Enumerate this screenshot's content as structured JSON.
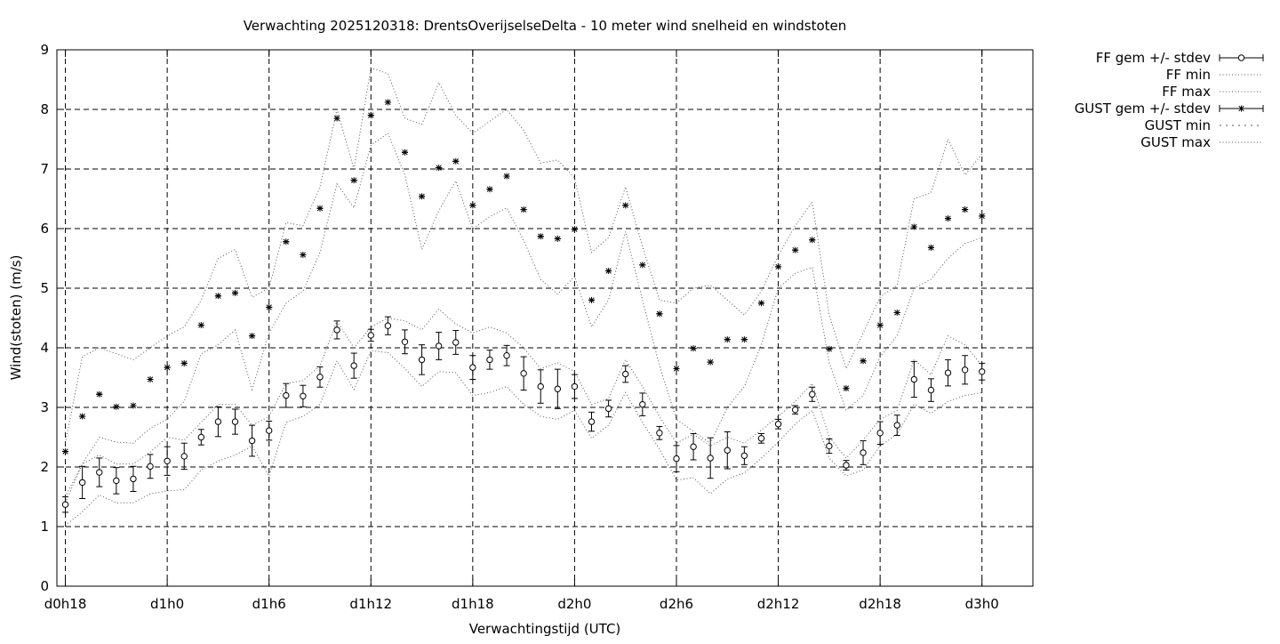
{
  "chart_data": {
    "type": "line",
    "title": "Verwachting 2025120318: DrentsOverijselseDelta - 10 meter wind snelheid en windstoten",
    "xlabel": "Verwachtingstijd (UTC)",
    "ylabel": "Wind(stoten) (m/s)",
    "xlim": [
      -0.5,
      57
    ],
    "ylim": [
      0,
      9
    ],
    "yticks": [
      0,
      1,
      2,
      3,
      4,
      5,
      6,
      7,
      8,
      9
    ],
    "xticks": [
      {
        "x": 0,
        "label": "d0h18"
      },
      {
        "x": 6,
        "label": "d1h0"
      },
      {
        "x": 12,
        "label": "d1h6"
      },
      {
        "x": 18,
        "label": "d1h12"
      },
      {
        "x": 24,
        "label": "d1h18"
      },
      {
        "x": 30,
        "label": "d2h0"
      },
      {
        "x": 36,
        "label": "d2h6"
      },
      {
        "x": 42,
        "label": "d2h12"
      },
      {
        "x": 48,
        "label": "d2h18"
      },
      {
        "x": 54,
        "label": "d3h0"
      }
    ],
    "grid": true,
    "legend_position": "outside-top-right",
    "x": [
      0,
      1,
      2,
      3,
      4,
      5,
      6,
      7,
      8,
      9,
      10,
      11,
      12,
      13,
      14,
      15,
      16,
      17,
      18,
      19,
      20,
      21,
      22,
      23,
      24,
      25,
      26,
      27,
      28,
      29,
      30,
      31,
      32,
      33,
      34,
      35,
      36,
      37,
      38,
      39,
      40,
      41,
      42,
      43,
      44,
      45,
      46,
      47,
      48,
      49,
      50,
      51,
      52,
      53,
      54
    ],
    "series": [
      {
        "name": "FF gem +/- stdev",
        "style": "errorbar-circle",
        "values": [
          1.37,
          1.74,
          1.91,
          1.77,
          1.8,
          2.01,
          2.1,
          2.18,
          2.5,
          2.76,
          2.76,
          2.44,
          2.61,
          3.2,
          3.19,
          3.51,
          4.3,
          3.7,
          4.21,
          4.37,
          4.1,
          3.8,
          4.03,
          4.09,
          3.67,
          3.8,
          3.87,
          3.57,
          3.35,
          3.31,
          3.35,
          2.76,
          2.98,
          3.56,
          3.05,
          2.57,
          2.14,
          2.34,
          2.15,
          2.28,
          2.19,
          2.48,
          2.72,
          2.96,
          3.22,
          2.35,
          2.03,
          2.24,
          2.57,
          2.7,
          3.47,
          3.29,
          3.58,
          3.63,
          3.6
        ],
        "stdev": [
          0.13,
          0.27,
          0.24,
          0.22,
          0.21,
          0.2,
          0.24,
          0.22,
          0.13,
          0.25,
          0.21,
          0.26,
          0.16,
          0.2,
          0.18,
          0.17,
          0.15,
          0.21,
          0.1,
          0.15,
          0.2,
          0.25,
          0.23,
          0.2,
          0.2,
          0.16,
          0.17,
          0.28,
          0.28,
          0.33,
          0.2,
          0.16,
          0.14,
          0.14,
          0.19,
          0.11,
          0.22,
          0.22,
          0.34,
          0.31,
          0.15,
          0.08,
          0.08,
          0.07,
          0.12,
          0.12,
          0.08,
          0.2,
          0.19,
          0.17,
          0.3,
          0.19,
          0.22,
          0.24,
          0.14
        ]
      },
      {
        "name": "FF min",
        "style": "dotted",
        "values": [
          1.02,
          1.25,
          1.53,
          1.4,
          1.4,
          1.55,
          1.6,
          1.62,
          1.95,
          2.1,
          2.2,
          2.35,
          1.85,
          2.75,
          2.85,
          3.05,
          3.78,
          3.3,
          3.95,
          3.92,
          3.65,
          3.35,
          3.6,
          3.58,
          3.2,
          3.25,
          3.35,
          3.05,
          2.85,
          2.8,
          2.95,
          2.48,
          2.7,
          3.25,
          2.75,
          2.3,
          1.78,
          1.82,
          1.55,
          1.8,
          1.9,
          2.15,
          2.42,
          2.72,
          2.95,
          2.15,
          1.85,
          1.95,
          2.35,
          2.55,
          3.05,
          2.9,
          3.1,
          3.2,
          3.25
        ]
      },
      {
        "name": "FF max",
        "style": "dotted",
        "values": [
          1.4,
          2.05,
          2.2,
          2.05,
          2.05,
          2.25,
          2.5,
          2.45,
          2.75,
          3.05,
          3.05,
          2.7,
          2.85,
          3.4,
          3.45,
          3.7,
          4.45,
          4.0,
          4.35,
          4.5,
          4.45,
          4.3,
          4.65,
          4.4,
          4.25,
          4.35,
          4.25,
          4.0,
          3.65,
          3.75,
          3.6,
          3.05,
          3.15,
          3.8,
          3.35,
          2.85,
          2.4,
          2.55,
          2.35,
          2.5,
          2.4,
          2.62,
          2.85,
          3.1,
          3.4,
          2.5,
          2.15,
          2.45,
          2.8,
          2.95,
          3.8,
          3.55,
          4.2,
          4.05,
          3.7
        ]
      },
      {
        "name": "GUST gem +/- stdev",
        "style": "errorbar-star",
        "values": [
          2.26,
          2.85,
          3.22,
          3.01,
          3.03,
          3.47,
          3.67,
          3.74,
          4.38,
          4.87,
          4.92,
          4.2,
          4.68,
          5.78,
          5.56,
          6.34,
          7.85,
          6.81,
          7.9,
          8.12,
          7.28,
          6.54,
          7.02,
          7.13,
          6.39,
          6.66,
          6.88,
          6.32,
          5.87,
          5.83,
          5.99,
          4.8,
          5.29,
          6.39,
          5.39,
          4.57,
          3.65,
          3.99,
          3.76,
          4.14,
          4.14,
          4.75,
          5.36,
          5.64,
          5.81,
          3.98,
          3.32,
          3.78,
          4.38,
          4.59,
          6.03,
          5.68,
          6.17,
          6.32,
          6.21
        ]
      },
      {
        "name": "GUST min",
        "style": "dotted",
        "values": [
          1.5,
          2.05,
          2.5,
          2.42,
          2.4,
          2.65,
          2.8,
          3.1,
          3.9,
          4.05,
          4.3,
          3.3,
          4.25,
          4.75,
          4.95,
          5.6,
          6.75,
          6.35,
          7.4,
          7.6,
          6.9,
          5.65,
          6.3,
          6.8,
          6.0,
          6.2,
          6.35,
          5.8,
          5.15,
          4.9,
          5.2,
          4.35,
          4.8,
          5.95,
          4.8,
          3.7,
          2.8,
          2.6,
          2.4,
          3.0,
          3.35,
          4.05,
          5.0,
          5.25,
          5.35,
          3.75,
          2.95,
          3.2,
          3.85,
          4.2,
          5.0,
          5.15,
          5.5,
          5.75,
          5.85
        ]
      },
      {
        "name": "GUST max",
        "style": "dotted",
        "values": [
          2.4,
          3.85,
          4.0,
          3.9,
          3.8,
          4.0,
          4.2,
          4.35,
          4.8,
          5.5,
          5.65,
          4.85,
          5.0,
          6.1,
          6.05,
          6.7,
          8.0,
          7.0,
          8.7,
          8.6,
          7.85,
          7.75,
          8.45,
          7.9,
          7.6,
          7.8,
          8.0,
          7.65,
          7.1,
          7.15,
          6.85,
          5.6,
          5.85,
          6.7,
          5.7,
          4.8,
          4.75,
          5.0,
          5.05,
          4.8,
          4.55,
          4.95,
          5.55,
          6.05,
          6.45,
          4.55,
          3.65,
          4.25,
          4.85,
          5.05,
          6.5,
          6.6,
          7.5,
          6.9,
          7.25
        ]
      }
    ]
  }
}
